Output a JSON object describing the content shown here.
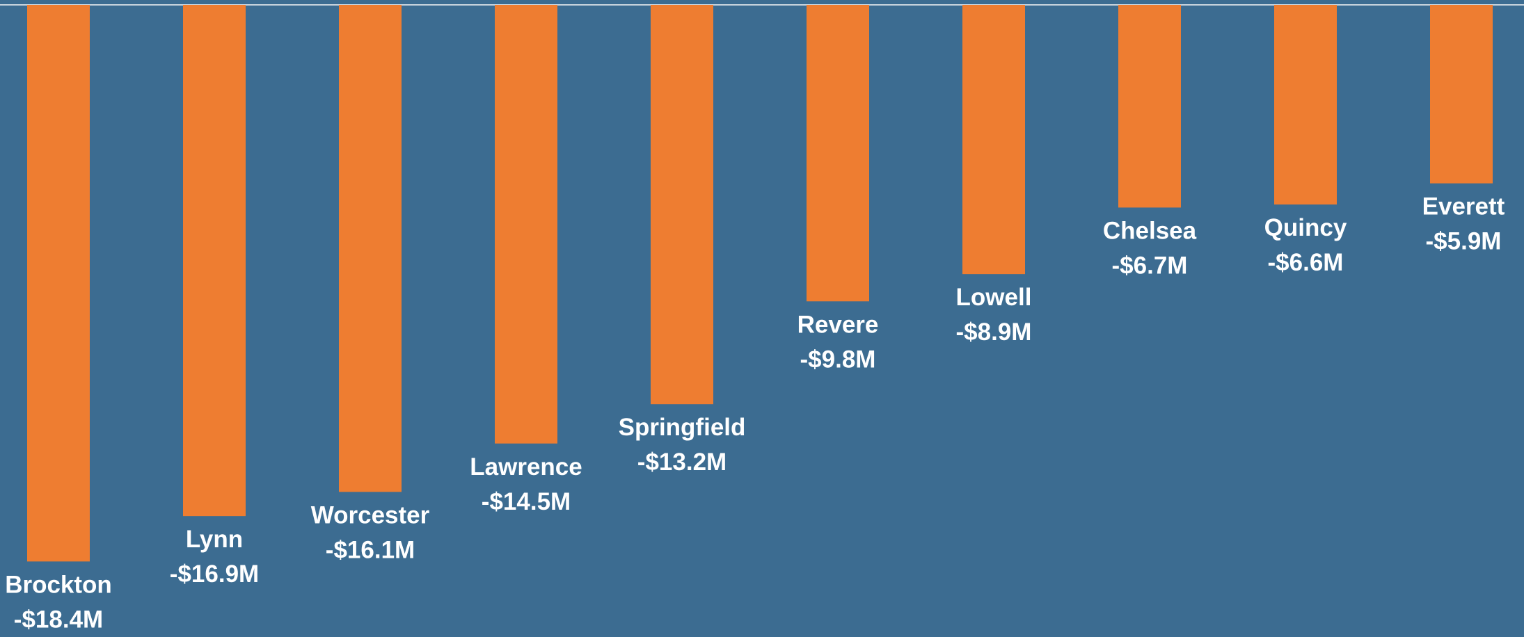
{
  "chart_data": {
    "type": "bar",
    "orientation": "vertical",
    "direction": "downward",
    "title": "",
    "xlabel": "",
    "ylabel": "",
    "ylim": [
      -18.4,
      0
    ],
    "grid": false,
    "legend": "none",
    "categories": [
      "Brockton",
      "Lynn",
      "Worcester",
      "Lawrence",
      "Springfield",
      "Revere",
      "Lowell",
      "Chelsea",
      "Quincy",
      "Everett"
    ],
    "values": [
      -18.4,
      -16.9,
      -16.1,
      -14.5,
      -13.2,
      -9.8,
      -8.9,
      -6.7,
      -6.6,
      -5.9
    ],
    "data_labels": [
      "-$18.4M",
      "-$16.9M",
      "-$16.1M",
      "-$14.5M",
      "-$13.2M",
      "-$9.8M",
      "-$8.9M",
      "-$6.7M",
      "-$6.6M",
      "-$5.9M"
    ],
    "colors": {
      "background": "#3c6c91",
      "bar": "#ee7d31",
      "label": "#ffffff",
      "baseline": "#c8d4dd"
    }
  }
}
